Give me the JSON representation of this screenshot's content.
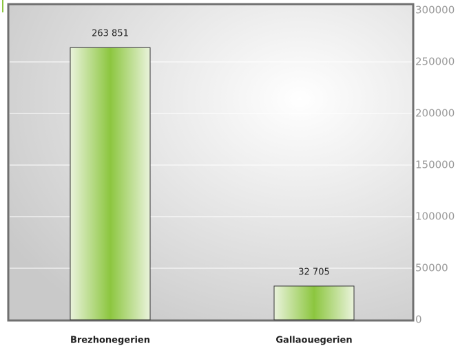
{
  "chart_data": {
    "type": "bar",
    "categories": [
      "Brezhonegerien",
      "Gallaouegerien"
    ],
    "values": [
      263851,
      32705
    ],
    "value_labels": [
      "263 851",
      "32 705"
    ],
    "color": "#8cc63f",
    "ylim": [
      0,
      300000
    ],
    "yticks": [
      0,
      50000,
      100000,
      150000,
      200000,
      250000,
      300000
    ],
    "grid": true
  }
}
